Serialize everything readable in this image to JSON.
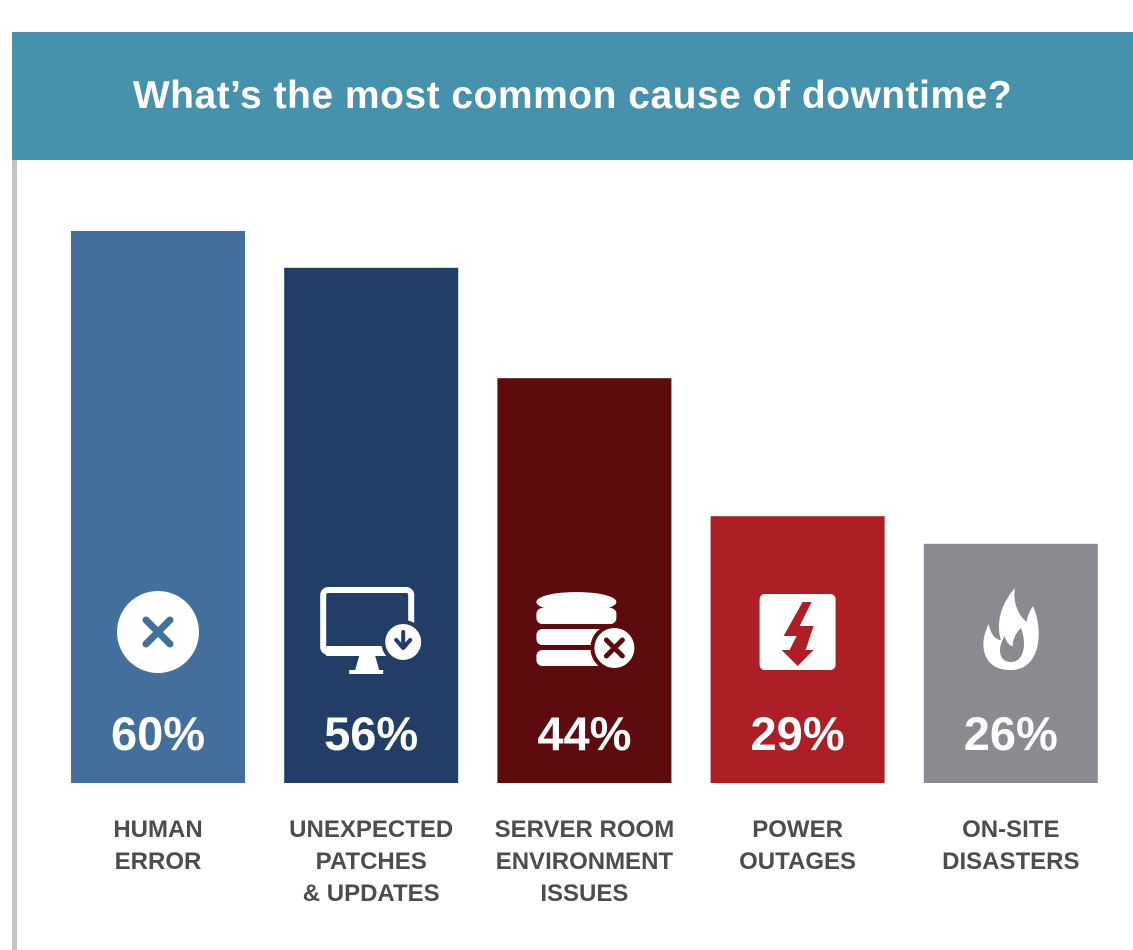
{
  "chart_data": {
    "type": "bar",
    "title": "What’s the most common cause of downtime?",
    "categories": [
      [
        "HUMAN",
        "ERROR"
      ],
      [
        "UNEXPECTED",
        "PATCHES",
        "& UPDATES"
      ],
      [
        "SERVER ROOM",
        "ENVIRONMENT",
        "ISSUES"
      ],
      [
        "POWER",
        "OUTAGES"
      ],
      [
        "ON-SITE",
        "DISASTERS"
      ]
    ],
    "values": [
      60,
      56,
      44,
      29,
      26
    ],
    "value_labels": [
      "60%",
      "56%",
      "44%",
      "29%",
      "26%"
    ],
    "bar_colors": [
      "#436f9d",
      "#233e66",
      "#5e0b10",
      "#ae1f25",
      "#8a8b90"
    ],
    "icons": [
      "close-circle-icon",
      "monitor-download-icon",
      "database-error-icon",
      "power-bolt-icon",
      "fire-icon"
    ],
    "ylim": [
      0,
      60
    ],
    "grid": false,
    "legend": "none"
  },
  "colors": {
    "header_bg": "#4692ad",
    "label_text": "#4d4d4d"
  }
}
